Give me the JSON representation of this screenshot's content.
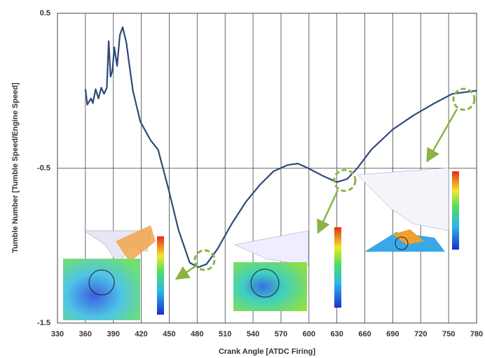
{
  "chart_data": {
    "type": "line",
    "x_label": "Crank Angle [ATDC Firing]",
    "y_label": "Tumble Number [Tumble Speed/Engine Speed]",
    "xlim": [
      330,
      780
    ],
    "xticks": [
      330,
      360,
      390,
      420,
      450,
      480,
      510,
      540,
      570,
      600,
      630,
      660,
      690,
      720,
      750,
      780
    ],
    "ylim": [
      -1.5,
      0.5
    ],
    "yticks": [
      -1.5,
      -0.5,
      0.5
    ],
    "grid": true,
    "series": [
      {
        "color": "#2e4a7a",
        "x": [
          360,
          362,
          366,
          368,
          371,
          374,
          377,
          380,
          383,
          385,
          387,
          389,
          391,
          394,
          397,
          400,
          404,
          408,
          411,
          419,
          430,
          438,
          449,
          460,
          472,
          481,
          490,
          502,
          517,
          532,
          547,
          562,
          577,
          588,
          599,
          615,
          630,
          641,
          652,
          667,
          690,
          712,
          735,
          754,
          780
        ],
        "values": [
          0.01,
          -0.09,
          -0.05,
          -0.08,
          0.01,
          -0.05,
          0.02,
          -0.02,
          0.02,
          0.32,
          0.09,
          0.13,
          0.28,
          0.16,
          0.36,
          0.41,
          0.31,
          0.13,
          0.0,
          -0.2,
          -0.32,
          -0.38,
          -0.63,
          -0.9,
          -1.11,
          -1.14,
          -1.12,
          -1.02,
          -0.86,
          -0.72,
          -0.61,
          -0.52,
          -0.48,
          -0.47,
          -0.5,
          -0.55,
          -0.59,
          -0.57,
          -0.5,
          -0.38,
          -0.25,
          -0.16,
          -0.08,
          -0.02,
          0.0
        ]
      }
    ]
  }
}
